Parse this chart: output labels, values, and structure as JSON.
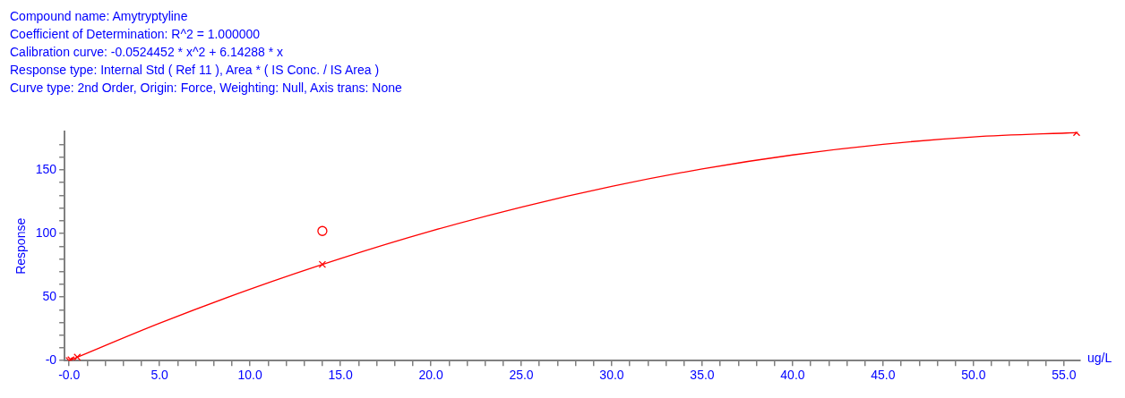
{
  "chart_data": {
    "type": "scatter",
    "title": "Compound name: Amytryptyline",
    "annotations": [
      "Coefficient of Determination: R^2 = 1.000000",
      "Calibration curve: -0.0524452 * x^2 + 6.14288 * x",
      "Response type: Internal Std ( Ref 11 ), Area * ( IS Conc. / IS Area )",
      "Curve type: 2nd Order, Origin: Force, Weighting: Null, Axis trans: None"
    ],
    "xlabel": "ug/L",
    "ylabel": "Response",
    "series": [
      {
        "type": "line",
        "color": "#ff0000",
        "marker": "none",
        "x": [
          0,
          5,
          10,
          15,
          20,
          25,
          30,
          35,
          40,
          45,
          50,
          55.7
        ],
        "values": [
          0,
          29.4,
          56.2,
          80.3,
          101.9,
          120.8,
          137.1,
          150.8,
          161.8,
          170.2,
          176.0,
          179.4
        ]
      },
      {
        "type": "scatter",
        "color": "#ff0000",
        "marker": "cross",
        "x": [
          0,
          0.1,
          0.45,
          14.0,
          55.7
        ],
        "values": [
          0,
          0.6,
          2.7,
          75.7,
          179.4
        ]
      },
      {
        "type": "scatter",
        "color": "#ff0000",
        "marker": "circle",
        "x": [
          14.0
        ],
        "values": [
          102
        ]
      }
    ],
    "xlim": [
      -0.25,
      55.9
    ],
    "ylim": [
      0,
      180
    ],
    "xticks": [
      {
        "value": 0,
        "label": "-0.0"
      },
      {
        "value": 5,
        "label": "5.0"
      },
      {
        "value": 10,
        "label": "10.0"
      },
      {
        "value": 15,
        "label": "15.0"
      },
      {
        "value": 20,
        "label": "20.0"
      },
      {
        "value": 25,
        "label": "25.0"
      },
      {
        "value": 30,
        "label": "30.0"
      },
      {
        "value": 35,
        "label": "35.0"
      },
      {
        "value": 40,
        "label": "40.0"
      },
      {
        "value": 45,
        "label": "45.0"
      },
      {
        "value": 50,
        "label": "50.0"
      },
      {
        "value": 55,
        "label": "55.0"
      },
      {
        "value": 1,
        "label": null
      },
      {
        "value": 2,
        "label": null
      },
      {
        "value": 3,
        "label": null
      },
      {
        "value": 4,
        "label": null
      },
      {
        "value": 6,
        "label": null
      },
      {
        "value": 7,
        "label": null
      },
      {
        "value": 8,
        "label": null
      },
      {
        "value": 9,
        "label": null
      },
      {
        "value": 11,
        "label": null
      },
      {
        "value": 12,
        "label": null
      },
      {
        "value": 13,
        "label": null
      },
      {
        "value": 14,
        "label": null
      },
      {
        "value": 16,
        "label": null
      },
      {
        "value": 17,
        "label": null
      },
      {
        "value": 18,
        "label": null
      },
      {
        "value": 19,
        "label": null
      },
      {
        "value": 21,
        "label": null
      },
      {
        "value": 22,
        "label": null
      },
      {
        "value": 23,
        "label": null
      },
      {
        "value": 24,
        "label": null
      },
      {
        "value": 26,
        "label": null
      },
      {
        "value": 27,
        "label": null
      },
      {
        "value": 28,
        "label": null
      },
      {
        "value": 29,
        "label": null
      },
      {
        "value": 31,
        "label": null
      },
      {
        "value": 32,
        "label": null
      },
      {
        "value": 33,
        "label": null
      },
      {
        "value": 34,
        "label": null
      },
      {
        "value": 36,
        "label": null
      },
      {
        "value": 37,
        "label": null
      },
      {
        "value": 38,
        "label": null
      },
      {
        "value": 39,
        "label": null
      },
      {
        "value": 41,
        "label": null
      },
      {
        "value": 42,
        "label": null
      },
      {
        "value": 43,
        "label": null
      },
      {
        "value": 44,
        "label": null
      },
      {
        "value": 46,
        "label": null
      },
      {
        "value": 47,
        "label": null
      },
      {
        "value": 48,
        "label": null
      },
      {
        "value": 49,
        "label": null
      },
      {
        "value": 51,
        "label": null
      },
      {
        "value": 52,
        "label": null
      },
      {
        "value": 53,
        "label": null
      },
      {
        "value": 54,
        "label": null
      }
    ],
    "yticks": [
      {
        "value": 0,
        "label": "-0"
      },
      50,
      100,
      150,
      {
        "value": 10,
        "label": null
      },
      {
        "value": 20,
        "label": null
      },
      {
        "value": 30,
        "label": null
      },
      {
        "value": 40,
        "label": null
      },
      {
        "value": 60,
        "label": null
      },
      {
        "value": 70,
        "label": null
      },
      {
        "value": 80,
        "label": null
      },
      {
        "value": 90,
        "label": null
      },
      {
        "value": 110,
        "label": null
      },
      {
        "value": 120,
        "label": null
      },
      {
        "value": 130,
        "label": null
      },
      {
        "value": 140,
        "label": null
      },
      {
        "value": 160,
        "label": null
      },
      {
        "value": 170,
        "label": null
      }
    ],
    "grid": false,
    "legend": false
  }
}
